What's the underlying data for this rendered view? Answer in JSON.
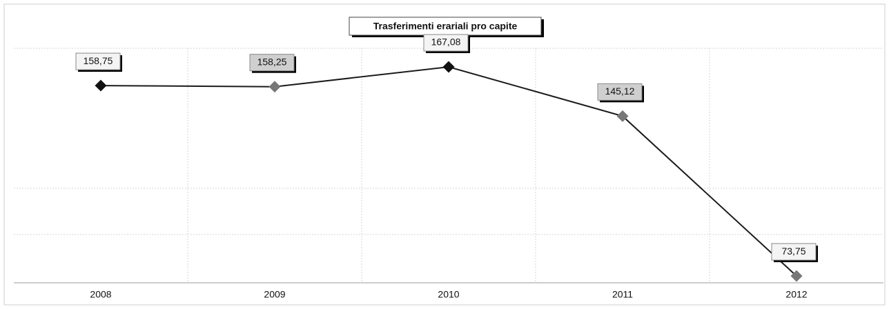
{
  "chart_data": {
    "type": "line",
    "title": "Trasferimenti erariali pro capite",
    "categories": [
      "2008",
      "2009",
      "2010",
      "2011",
      "2012"
    ],
    "values": [
      158.75,
      158.25,
      167.08,
      145.12,
      73.75
    ],
    "value_labels": [
      "158,75",
      "158,25",
      "167,08",
      "145,12",
      "73,75"
    ],
    "color": "#1a1a1a",
    "marker_colors": [
      "#111111",
      "#777777",
      "#111111",
      "#777777",
      "#777777"
    ],
    "ylim": [
      70.7,
      175.4
    ]
  }
}
